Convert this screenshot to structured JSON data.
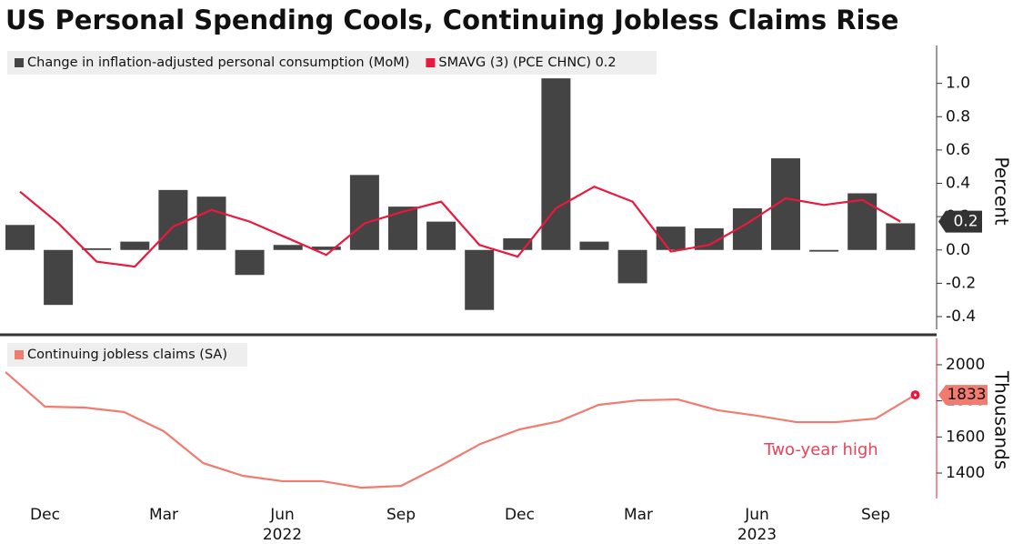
{
  "chart_data": [
    {
      "type": "bar",
      "title": "US Personal Spending Cools, Continuing Jobless Claims Rise",
      "ylabel": "Percent",
      "ylim": [
        -0.46,
        1.2
      ],
      "yticks": [
        -0.4,
        -0.2,
        {
          "value": 0,
          "label": "0.0"
        },
        0.2,
        0.4,
        0.6,
        0.8,
        {
          "value": 1,
          "label": "1.0"
        }
      ],
      "series": [
        {
          "name": "Change in inflation-adjusted personal consumption (MoM)",
          "type": "bar",
          "color": "#444444",
          "values": [
            0.15,
            -0.33,
            0.01,
            0.05,
            0.36,
            0.32,
            -0.15,
            0.03,
            0.02,
            0.45,
            0.26,
            0.17,
            -0.36,
            0.07,
            1.03,
            0.05,
            -0.2,
            0.14,
            0.13,
            0.25,
            0.55,
            -0.01,
            0.34,
            0.16
          ]
        },
        {
          "name": "SMAVG (3) (PCE CHNC) 0.2",
          "type": "line",
          "color": "#e8193c",
          "values": [
            0.35,
            0.16,
            -0.07,
            -0.1,
            0.14,
            0.24,
            0.17,
            0.07,
            -0.03,
            0.16,
            0.23,
            0.29,
            0.03,
            -0.04,
            0.25,
            0.38,
            0.29,
            -0.01,
            0.03,
            0.16,
            0.31,
            0.27,
            0.3,
            0.17
          ],
          "value_labels": [
            null,
            null,
            null,
            null,
            null,
            null,
            null,
            null,
            null,
            null,
            null,
            null,
            null,
            null,
            null,
            null,
            null,
            null,
            null,
            null,
            null,
            null,
            null,
            "0.2"
          ]
        }
      ]
    },
    {
      "type": "line",
      "ylabel": "Thousands",
      "ylim": [
        1259,
        2156
      ],
      "yticks": [
        1400,
        1600,
        1800,
        2000
      ],
      "categories": [
        null,
        "Dec",
        null,
        null,
        "Mar",
        null,
        null,
        "Jun",
        null,
        null,
        "Sep",
        null,
        null,
        "Dec",
        null,
        null,
        "Mar",
        null,
        null,
        "Jun",
        null,
        null,
        "Sep",
        null
      ],
      "years": [
        null,
        null,
        null,
        null,
        null,
        null,
        null,
        "2022",
        null,
        null,
        null,
        null,
        null,
        null,
        null,
        null,
        null,
        null,
        null,
        "2023",
        null,
        null,
        null,
        null
      ],
      "annotations": [
        {
          "text": "Two-year high"
        }
      ],
      "series": [
        {
          "name": "Continuing jobless claims (SA)",
          "type": "line",
          "color": "#f27b70",
          "values": [
            1960,
            1768,
            1763,
            1738,
            1632,
            1455,
            1385,
            1355,
            1355,
            1319,
            1329,
            1440,
            1561,
            1642,
            1687,
            1778,
            1803,
            1808,
            1748,
            1718,
            1682,
            1682,
            1702,
            1833
          ]
        }
      ]
    }
  ]
}
